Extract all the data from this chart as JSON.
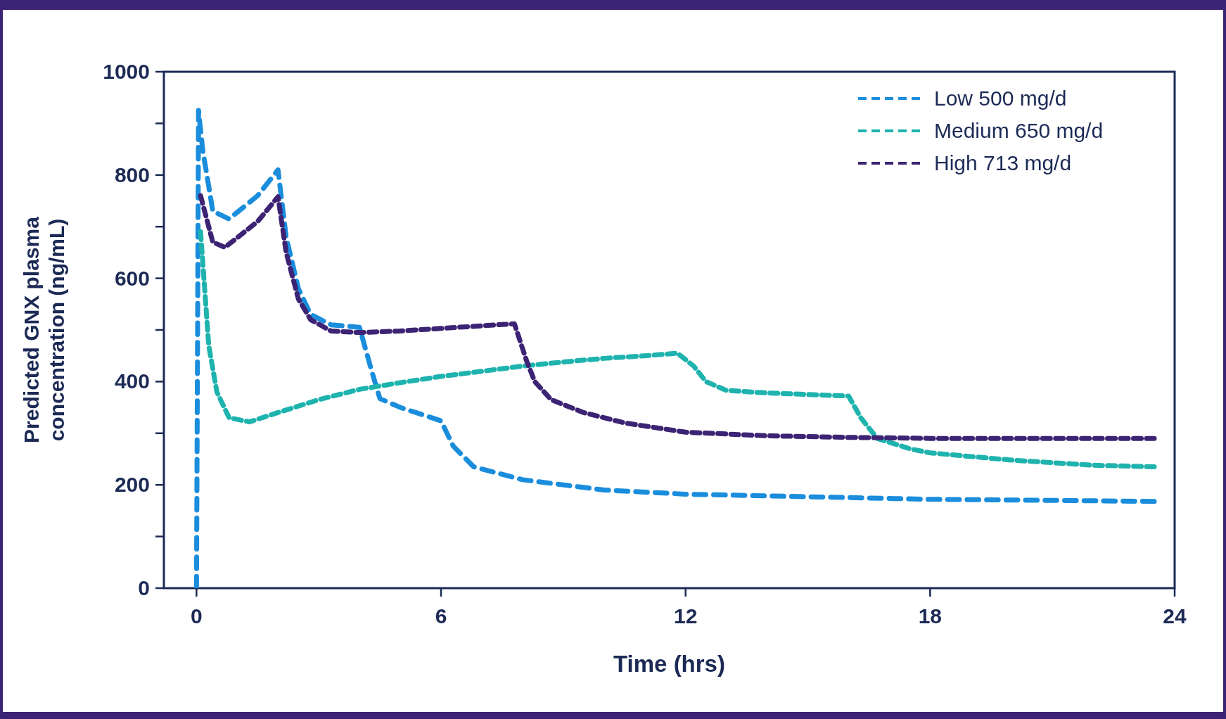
{
  "chart_data": {
    "type": "line",
    "xlabel": "Time (hrs)",
    "ylabel": "Predicted GNX plasma concentration (ng/mL)",
    "xlim": [
      -0.8,
      24
    ],
    "xticks": [
      0,
      6,
      12,
      18,
      24
    ],
    "ylim": [
      0,
      1000
    ],
    "yticks": [
      0,
      {
        "value": 100,
        "label": null
      },
      200,
      {
        "value": 300,
        "label": null
      },
      400,
      {
        "value": 500,
        "label": null
      },
      600,
      {
        "value": 700,
        "label": null
      },
      800,
      {
        "value": 900,
        "label": null
      },
      1000
    ],
    "grid": false,
    "legend": "top right",
    "line_style": "dashed",
    "marker": "none",
    "series": [
      {
        "name": "Low 500 mg/d",
        "color": "#1a8ddc",
        "x": [
          0,
          0.05,
          0.15,
          0.4,
          0.8,
          1.5,
          2.0,
          2.2,
          2.5,
          2.8,
          3.3,
          4,
          4.3,
          4.5,
          5,
          6,
          6.3,
          6.8,
          8,
          10,
          12,
          15,
          18,
          21,
          23.5
        ],
        "values": [
          0,
          925,
          850,
          730,
          715,
          760,
          810,
          680,
          580,
          530,
          510,
          505,
          420,
          367,
          350,
          324,
          275,
          235,
          210,
          190,
          182,
          177,
          172,
          170,
          168
        ]
      },
      {
        "name": "Medium 650 mg/d",
        "color": "#1fb3ae",
        "x": [
          0.1,
          0.3,
          0.5,
          0.8,
          1.3,
          2,
          3,
          4,
          5,
          6,
          7,
          8,
          9,
          10,
          11,
          11.8,
          12.2,
          12.5,
          13,
          14,
          15,
          16,
          16.3,
          16.7,
          17.5,
          18,
          20,
          22,
          23.5
        ],
        "values": [
          690,
          470,
          380,
          330,
          322,
          340,
          365,
          385,
          398,
          410,
          420,
          430,
          438,
          445,
          450,
          455,
          430,
          400,
          383,
          378,
          375,
          372,
          330,
          290,
          270,
          262,
          248,
          238,
          235
        ]
      },
      {
        "name": "High 713 mg/d",
        "color": "#3d2373",
        "x": [
          0.1,
          0.4,
          0.7,
          1.5,
          2,
          2.2,
          2.5,
          2.8,
          3.3,
          4,
          5,
          6,
          7,
          7.8,
          8.1,
          8.3,
          8.7,
          9.5,
          10.5,
          12,
          14,
          16,
          18,
          21,
          23.5
        ],
        "values": [
          760,
          670,
          660,
          710,
          758,
          650,
          560,
          520,
          498,
          495,
          498,
          503,
          508,
          512,
          440,
          400,
          365,
          340,
          320,
          302,
          295,
          292,
          290,
          290,
          290
        ]
      }
    ]
  }
}
